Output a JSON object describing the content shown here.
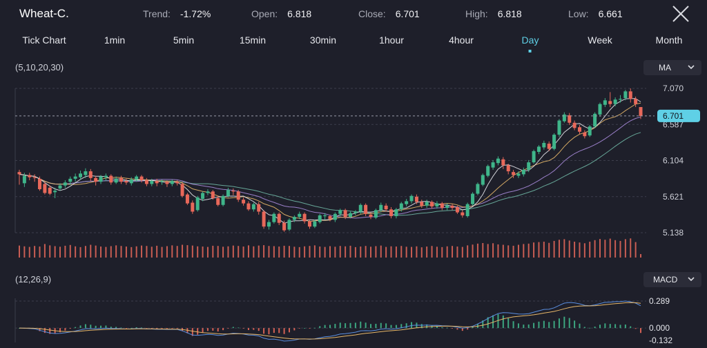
{
  "header": {
    "symbol": "Wheat-C.",
    "trend_label": "Trend:",
    "trend_value": "-1.72%",
    "open_label": "Open:",
    "open_value": "6.818",
    "close_label": "Close:",
    "close_value": "6.701",
    "high_label": "High:",
    "high_value": "6.818",
    "low_label": "Low:",
    "low_value": "6.661",
    "close_icon": "close-icon"
  },
  "tabs": [
    {
      "label": "Tick Chart",
      "active": false
    },
    {
      "label": "1min",
      "active": false
    },
    {
      "label": "5min",
      "active": false
    },
    {
      "label": "15min",
      "active": false
    },
    {
      "label": "30min",
      "active": false
    },
    {
      "label": "1hour",
      "active": false
    },
    {
      "label": "4hour",
      "active": false
    },
    {
      "label": "Day",
      "active": true
    },
    {
      "label": "Week",
      "active": false
    },
    {
      "label": "Month",
      "active": false
    }
  ],
  "main_panel": {
    "params": "(5,10,20,30)",
    "indicator": "MA",
    "chevron_icon": "chevron-down-icon"
  },
  "macd_panel": {
    "params": "(12,26,9)",
    "indicator": "MACD",
    "chevron_icon": "chevron-down-icon"
  },
  "colors": {
    "background": "#1e1f2a",
    "up": "#3fb58a",
    "down": "#e8685a",
    "accent": "#5fd0e6",
    "ma5": "#e6e7ec",
    "ma10": "#e8b86a",
    "ma20": "#a98bdc",
    "ma30": "#6fb6a4",
    "macd_line": "#5b8fe0",
    "signal_line": "#e8b86a"
  },
  "chart_data": [
    {
      "type": "candlestick",
      "y_ticks": [
        "7.070",
        "6.587",
        "6.104",
        "5.621",
        "5.138"
      ],
      "ylim": [
        5.138,
        7.07
      ],
      "current_price": "6.701",
      "candles": [
        [
          5.95,
          5.92,
          5.98,
          5.78
        ],
        [
          5.8,
          5.9,
          5.94,
          5.75
        ],
        [
          5.91,
          5.88,
          5.94,
          5.84
        ],
        [
          5.88,
          5.87,
          5.92,
          5.82
        ],
        [
          5.86,
          5.72,
          5.89,
          5.7
        ],
        [
          5.79,
          5.67,
          5.82,
          5.65
        ],
        [
          5.74,
          5.66,
          5.77,
          5.64
        ],
        [
          5.68,
          5.7,
          5.74,
          5.6
        ],
        [
          5.73,
          5.77,
          5.8,
          5.7
        ],
        [
          5.77,
          5.81,
          5.84,
          5.74
        ],
        [
          5.82,
          5.86,
          5.89,
          5.78
        ],
        [
          5.86,
          5.89,
          5.93,
          5.82
        ],
        [
          5.88,
          5.93,
          5.97,
          5.85
        ],
        [
          5.91,
          5.96,
          6.0,
          5.87
        ],
        [
          5.96,
          5.87,
          5.99,
          5.83
        ],
        [
          5.87,
          5.82,
          5.9,
          5.77
        ],
        [
          5.82,
          5.89,
          5.91,
          5.79
        ],
        [
          5.88,
          5.9,
          5.93,
          5.83
        ],
        [
          5.9,
          5.81,
          5.92,
          5.78
        ],
        [
          5.81,
          5.86,
          5.89,
          5.79
        ],
        [
          5.87,
          5.82,
          5.9,
          5.79
        ],
        [
          5.83,
          5.81,
          5.86,
          5.78
        ],
        [
          5.8,
          5.85,
          5.88,
          5.77
        ],
        [
          5.85,
          5.89,
          5.91,
          5.82
        ],
        [
          5.89,
          5.84,
          5.91,
          5.81
        ],
        [
          5.84,
          5.79,
          5.87,
          5.76
        ],
        [
          5.79,
          5.83,
          5.86,
          5.76
        ],
        [
          5.83,
          5.8,
          5.86,
          5.76
        ],
        [
          5.82,
          5.83,
          5.85,
          5.78
        ],
        [
          5.82,
          5.79,
          5.84,
          5.75
        ],
        [
          5.79,
          5.83,
          5.85,
          5.76
        ],
        [
          5.82,
          5.8,
          5.84,
          5.77
        ],
        [
          5.79,
          5.63,
          5.82,
          5.61
        ],
        [
          5.65,
          5.53,
          5.67,
          5.51
        ],
        [
          5.54,
          5.42,
          5.57,
          5.39
        ],
        [
          5.44,
          5.61,
          5.63,
          5.42
        ],
        [
          5.59,
          5.67,
          5.69,
          5.56
        ],
        [
          5.67,
          5.69,
          5.72,
          5.64
        ],
        [
          5.69,
          5.6,
          5.71,
          5.58
        ],
        [
          5.6,
          5.51,
          5.63,
          5.49
        ],
        [
          5.51,
          5.63,
          5.65,
          5.49
        ],
        [
          5.63,
          5.71,
          5.74,
          5.61
        ],
        [
          5.7,
          5.69,
          5.73,
          5.64
        ],
        [
          5.69,
          5.58,
          5.71,
          5.55
        ],
        [
          5.58,
          5.53,
          5.61,
          5.5
        ],
        [
          5.53,
          5.45,
          5.56,
          5.43
        ],
        [
          5.45,
          5.52,
          5.54,
          5.42
        ],
        [
          5.52,
          5.42,
          5.55,
          5.38
        ],
        [
          5.42,
          5.22,
          5.44,
          5.19
        ],
        [
          5.22,
          5.28,
          5.31,
          5.18
        ],
        [
          5.28,
          5.39,
          5.41,
          5.26
        ],
        [
          5.39,
          5.27,
          5.41,
          5.24
        ],
        [
          5.27,
          5.17,
          5.3,
          5.15
        ],
        [
          5.18,
          5.31,
          5.33,
          5.16
        ],
        [
          5.31,
          5.35,
          5.37,
          5.28
        ],
        [
          5.35,
          5.39,
          5.42,
          5.32
        ],
        [
          5.39,
          5.29,
          5.41,
          5.26
        ],
        [
          5.29,
          5.22,
          5.31,
          5.19
        ],
        [
          5.22,
          5.29,
          5.31,
          5.2
        ],
        [
          5.28,
          5.37,
          5.39,
          5.26
        ],
        [
          5.36,
          5.37,
          5.4,
          5.31
        ],
        [
          5.36,
          5.32,
          5.38,
          5.29
        ],
        [
          5.31,
          5.39,
          5.41,
          5.28
        ],
        [
          5.39,
          5.44,
          5.46,
          5.36
        ],
        [
          5.44,
          5.35,
          5.46,
          5.32
        ],
        [
          5.35,
          5.4,
          5.42,
          5.33
        ],
        [
          5.4,
          5.42,
          5.44,
          5.37
        ],
        [
          5.42,
          5.51,
          5.53,
          5.39
        ],
        [
          5.51,
          5.39,
          5.53,
          5.36
        ],
        [
          5.38,
          5.35,
          5.41,
          5.32
        ],
        [
          5.34,
          5.44,
          5.46,
          5.32
        ],
        [
          5.44,
          5.51,
          5.54,
          5.41
        ],
        [
          5.5,
          5.45,
          5.53,
          5.42
        ],
        [
          5.45,
          5.36,
          5.48,
          5.33
        ],
        [
          5.36,
          5.45,
          5.47,
          5.33
        ],
        [
          5.45,
          5.53,
          5.55,
          5.42
        ],
        [
          5.52,
          5.56,
          5.59,
          5.49
        ],
        [
          5.56,
          5.63,
          5.65,
          5.53
        ],
        [
          5.62,
          5.55,
          5.65,
          5.52
        ],
        [
          5.55,
          5.5,
          5.58,
          5.47
        ],
        [
          5.5,
          5.55,
          5.58,
          5.47
        ],
        [
          5.55,
          5.49,
          5.57,
          5.46
        ],
        [
          5.49,
          5.53,
          5.56,
          5.46
        ],
        [
          5.53,
          5.47,
          5.55,
          5.44
        ],
        [
          5.47,
          5.5,
          5.53,
          5.44
        ],
        [
          5.5,
          5.47,
          5.52,
          5.44
        ],
        [
          5.48,
          5.41,
          5.5,
          5.39
        ],
        [
          5.41,
          5.37,
          5.44,
          5.34
        ],
        [
          5.36,
          5.52,
          5.54,
          5.34
        ],
        [
          5.52,
          5.66,
          5.68,
          5.5
        ],
        [
          5.66,
          5.79,
          5.81,
          5.64
        ],
        [
          5.78,
          5.91,
          5.93,
          5.76
        ],
        [
          5.9,
          6.03,
          6.05,
          5.88
        ],
        [
          6.01,
          6.08,
          6.11,
          5.98
        ],
        [
          6.07,
          6.13,
          6.16,
          6.04
        ],
        [
          6.12,
          6.04,
          6.15,
          5.99
        ],
        [
          6.04,
          5.96,
          6.06,
          5.92
        ],
        [
          5.95,
          5.91,
          5.98,
          5.87
        ],
        [
          5.9,
          5.93,
          5.96,
          5.87
        ],
        [
          5.92,
          5.98,
          6.01,
          5.89
        ],
        [
          5.98,
          6.08,
          6.11,
          5.95
        ],
        [
          6.08,
          6.23,
          6.25,
          6.06
        ],
        [
          6.22,
          6.29,
          6.31,
          6.19
        ],
        [
          6.28,
          6.34,
          6.37,
          6.25
        ],
        [
          6.33,
          6.26,
          6.36,
          6.23
        ],
        [
          6.26,
          6.45,
          6.47,
          6.24
        ],
        [
          6.45,
          6.64,
          6.66,
          6.42
        ],
        [
          6.63,
          6.72,
          6.75,
          6.61
        ],
        [
          6.71,
          6.61,
          6.74,
          6.58
        ],
        [
          6.61,
          6.54,
          6.64,
          6.51
        ],
        [
          6.55,
          6.49,
          6.58,
          6.46
        ],
        [
          6.48,
          6.43,
          6.51,
          6.4
        ],
        [
          6.44,
          6.56,
          6.58,
          6.42
        ],
        [
          6.56,
          6.73,
          6.75,
          6.54
        ],
        [
          6.72,
          6.86,
          6.88,
          6.69
        ],
        [
          6.85,
          6.91,
          6.94,
          6.82
        ],
        [
          6.9,
          6.86,
          7.02,
          6.82
        ],
        [
          6.86,
          6.92,
          6.95,
          6.83
        ],
        [
          6.92,
          6.93,
          6.98,
          6.88
        ],
        [
          6.94,
          7.03,
          7.05,
          6.91
        ],
        [
          7.03,
          6.93,
          7.07,
          6.88
        ],
        [
          6.93,
          6.86,
          6.96,
          6.82
        ],
        [
          6.82,
          6.7,
          6.82,
          6.66
        ]
      ],
      "volume_relative": [
        0.62,
        0.58,
        0.55,
        0.6,
        0.57,
        0.7,
        0.63,
        0.59,
        0.56,
        0.61,
        0.65,
        0.58,
        0.54,
        0.6,
        0.66,
        0.62,
        0.57,
        0.55,
        0.59,
        0.63,
        0.6,
        0.57,
        0.54,
        0.58,
        0.62,
        0.6,
        0.56,
        0.61,
        0.55,
        0.59,
        0.63,
        0.6,
        0.66,
        0.64,
        0.62,
        0.58,
        0.57,
        0.55,
        0.61,
        0.6,
        0.56,
        0.58,
        0.62,
        0.6,
        0.57,
        0.63,
        0.58,
        0.62,
        0.64,
        0.6,
        0.59,
        0.57,
        0.61,
        0.6,
        0.56,
        0.54,
        0.58,
        0.6,
        0.63,
        0.57,
        0.55,
        0.59,
        0.56,
        0.6,
        0.58,
        0.61,
        0.54,
        0.57,
        0.6,
        0.56,
        0.59,
        0.62,
        0.55,
        0.58,
        0.57,
        0.6,
        0.56,
        0.55,
        0.58,
        0.53,
        0.57,
        0.6,
        0.56,
        0.54,
        0.58,
        0.6,
        0.57,
        0.55,
        0.63,
        0.67,
        0.72,
        0.75,
        0.7,
        0.74,
        0.68,
        0.66,
        0.63,
        0.61,
        0.66,
        0.7,
        0.72,
        0.78,
        0.8,
        0.82,
        0.76,
        0.86,
        0.92,
        0.95,
        0.88,
        0.82,
        0.78,
        0.74,
        0.82,
        0.9,
        0.96,
        0.92,
        0.98,
        0.9,
        0.86,
        0.95,
        0.99,
        0.8,
        0.18
      ]
    },
    {
      "type": "macd",
      "y_ticks": [
        "0.289",
        "0.000",
        "-0.132"
      ],
      "ylim": [
        -0.132,
        0.289
      ]
    }
  ]
}
